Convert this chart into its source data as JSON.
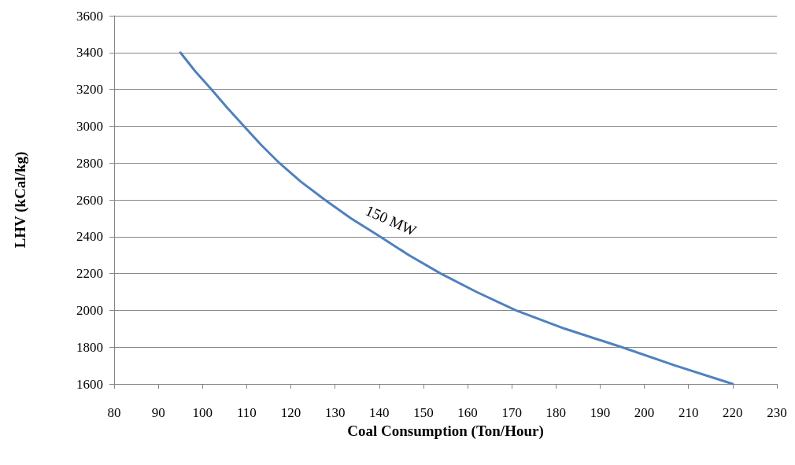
{
  "chart_data": {
    "type": "line",
    "xlabel": "Coal Consumption (Ton/Hour)",
    "ylabel": "LHV (kCal/kg)",
    "series": [
      {
        "name": "150 MW",
        "color": "#4f81bd",
        "x": [
          95,
          98.3,
          102,
          105.6,
          109.4,
          113.2,
          117.4,
          122.2,
          127.7,
          133.6,
          140.2,
          146.7,
          153.9,
          162,
          170.9,
          182,
          194.9,
          207,
          220
        ],
        "values": [
          3400,
          3300,
          3200,
          3100,
          3000,
          2900,
          2800,
          2700,
          2600,
          2500,
          2400,
          2300,
          2200,
          2100,
          2000,
          1900,
          1800,
          1700,
          1600
        ]
      }
    ],
    "xlim": [
      80,
      230
    ],
    "xticks": [
      80,
      90,
      100,
      110,
      120,
      130,
      140,
      150,
      160,
      170,
      180,
      190,
      200,
      210,
      220,
      230
    ],
    "ylim": [
      1600,
      3600
    ],
    "yticks": [
      1600,
      1800,
      2000,
      2200,
      2400,
      2600,
      2800,
      3000,
      3200,
      3400,
      3600
    ],
    "grid": "y",
    "marker": "none",
    "line_style": "solid"
  }
}
